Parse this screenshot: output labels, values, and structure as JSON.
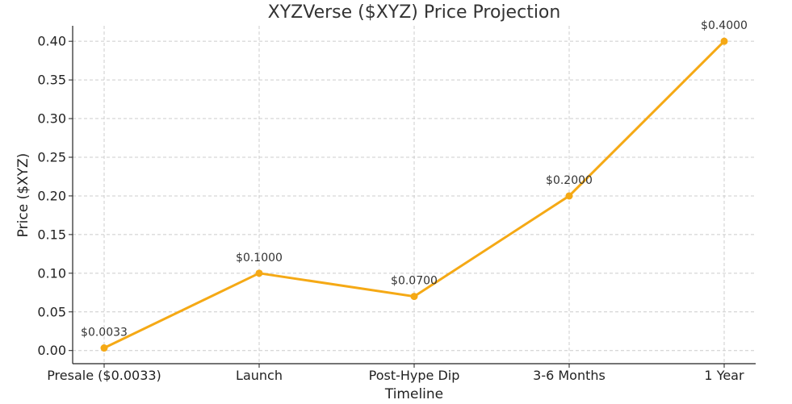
{
  "chart_data": {
    "type": "line",
    "title": "XYZVerse ($XYZ) Price Projection",
    "xlabel": "Timeline",
    "ylabel": "Price ($XYZ)",
    "categories": [
      "Presale ($0.0033)",
      "Launch",
      "Post-Hype Dip",
      "3-6 Months",
      "1 Year"
    ],
    "series": [
      {
        "values": [
          0.0033,
          0.1,
          0.07,
          0.2,
          0.4
        ],
        "color": "#f5a915"
      }
    ],
    "data_labels": [
      "$0.0033",
      "$0.1000",
      "$0.0700",
      "$0.2000",
      "$0.4000"
    ],
    "ylim": [
      -0.017,
      0.42
    ],
    "yticks": [
      "0.00",
      "0.05",
      "0.10",
      "0.15",
      "0.20",
      "0.25",
      "0.30",
      "0.35",
      "0.40"
    ],
    "grid": true
  }
}
